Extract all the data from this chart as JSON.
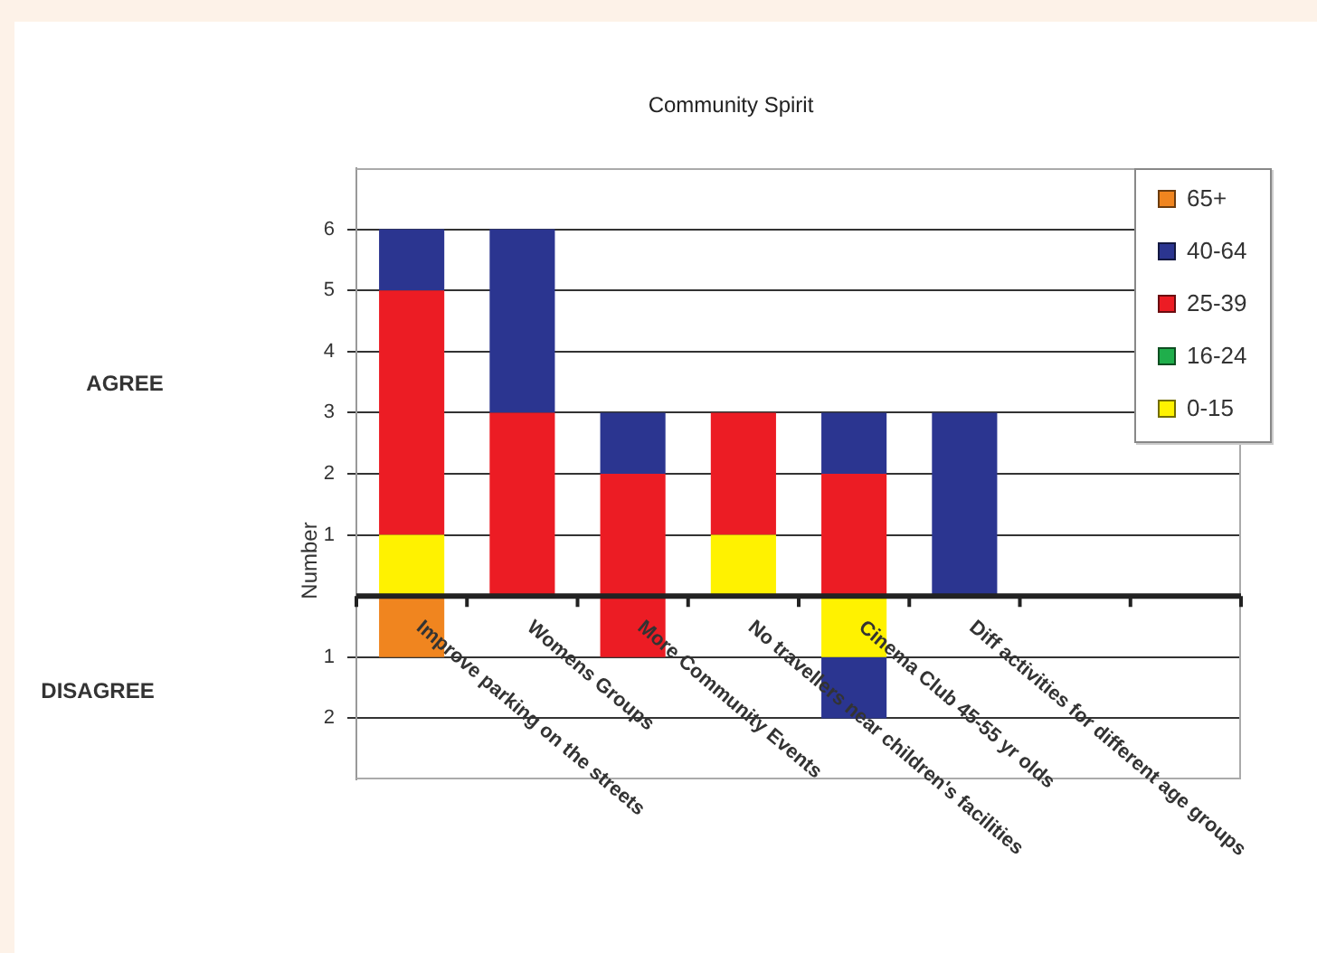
{
  "chart_data": {
    "type": "bar",
    "title": "Community Spirit",
    "ylabel": "Number",
    "annotations": [
      "AGREE",
      "DISAGREE"
    ],
    "categories": [
      "Improve parking on the streets",
      "Womens Groups",
      "More Community Events",
      "No travellers near children's facilities",
      "Cinema Club 45-55 yr olds",
      "Diff activities for different age groups",
      null,
      null
    ],
    "series": [
      {
        "name": "0-15",
        "color": "#fff200",
        "values": [
          1,
          null,
          null,
          1,
          -1,
          null,
          null,
          null
        ]
      },
      {
        "name": "16-24",
        "color": "#1fae4b",
        "values": [
          null,
          null,
          null,
          null,
          null,
          null,
          null,
          null
        ]
      },
      {
        "name": "25-39",
        "color": "#ec1c24",
        "values": [
          4,
          3,
          2,
          2,
          2,
          null,
          null,
          null
        ]
      },
      {
        "name": "40-64",
        "color": "#2b3590",
        "values": [
          1,
          3,
          1,
          null,
          1,
          3,
          null,
          null
        ]
      },
      {
        "name": "65+",
        "color": "#f0851f",
        "values": [
          -1,
          null,
          null,
          null,
          null,
          null,
          null,
          null
        ]
      },
      {
        "color": "#ec1c24",
        "values": [
          null,
          null,
          -1,
          null,
          null,
          null,
          null,
          null
        ]
      },
      {
        "color": "#2b3590",
        "values": [
          null,
          null,
          null,
          null,
          -1,
          null,
          null,
          null
        ]
      }
    ],
    "stacked": true,
    "ylim": [
      -3,
      7
    ],
    "yticks": [
      {
        "value": -2,
        "label": "2"
      },
      {
        "value": -1,
        "label": "1"
      },
      1,
      2,
      3,
      4,
      5,
      6
    ],
    "grid": "y",
    "legend": "top right"
  }
}
